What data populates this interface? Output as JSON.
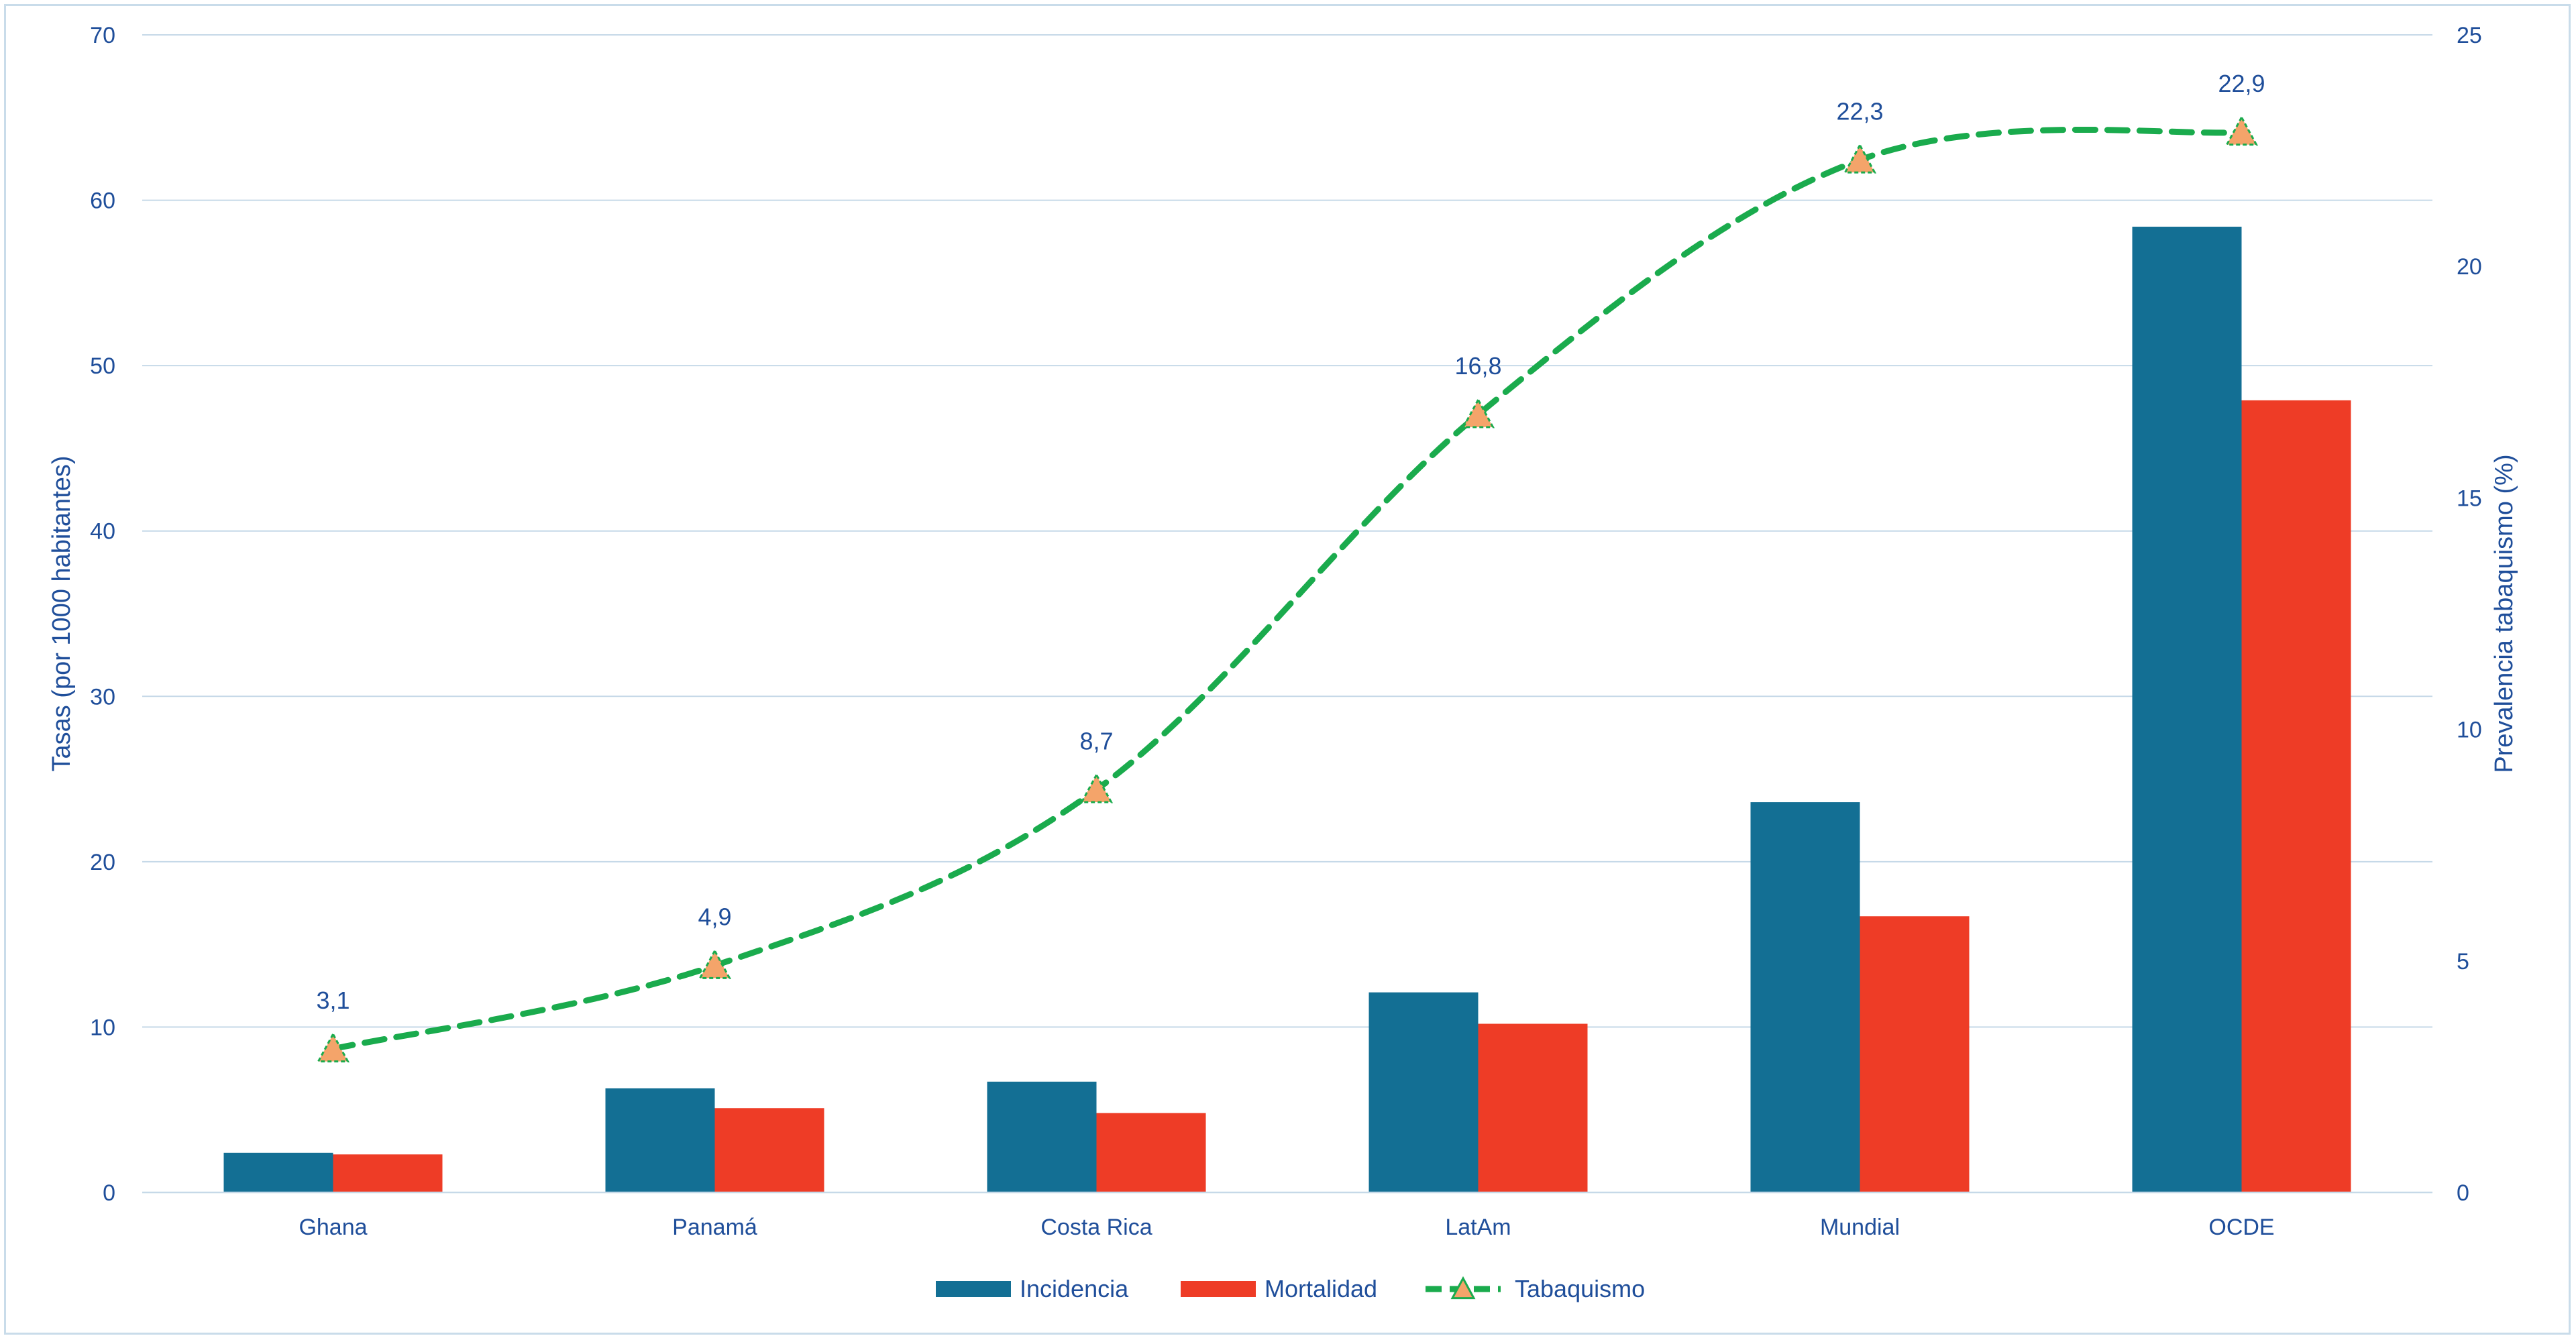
{
  "chart_data": {
    "type": "bar",
    "title": "",
    "categories": [
      "Ghana",
      "Panamá",
      "Costa Rica",
      "LatAm",
      "Mundial",
      "OCDE"
    ],
    "series": [
      {
        "name": "Incidencia",
        "kind": "bar",
        "axis": "left",
        "color": "#136f94",
        "values": [
          2.4,
          6.3,
          6.7,
          12.1,
          23.6,
          58.4
        ]
      },
      {
        "name": "Mortalidad",
        "kind": "bar",
        "axis": "left",
        "color": "#ee3c26",
        "values": [
          2.3,
          5.1,
          4.8,
          10.2,
          16.7,
          47.9
        ]
      },
      {
        "name": "Tabaquismo",
        "kind": "line",
        "axis": "right",
        "color": "#1aab4d",
        "marker_color": "#f4a46a",
        "values": [
          3.1,
          4.9,
          8.7,
          16.8,
          22.3,
          22.9
        ],
        "labels": [
          "3,1",
          "4,9",
          "8,7",
          "16,8",
          "22,3",
          "22,9"
        ]
      }
    ],
    "ylabel": "Tasas (por 1000 habitantes)",
    "ylim": [
      0,
      70
    ],
    "yticks": [
      "0",
      "10",
      "20",
      "30",
      "40",
      "50",
      "60",
      "70"
    ],
    "y2label": "Prevalencia tabaquismo (%)",
    "y2lim": [
      0,
      25
    ],
    "y2ticks": [
      "0",
      "5",
      "10",
      "15",
      "20",
      "25"
    ],
    "grid": true,
    "legend": "bottom-center"
  }
}
